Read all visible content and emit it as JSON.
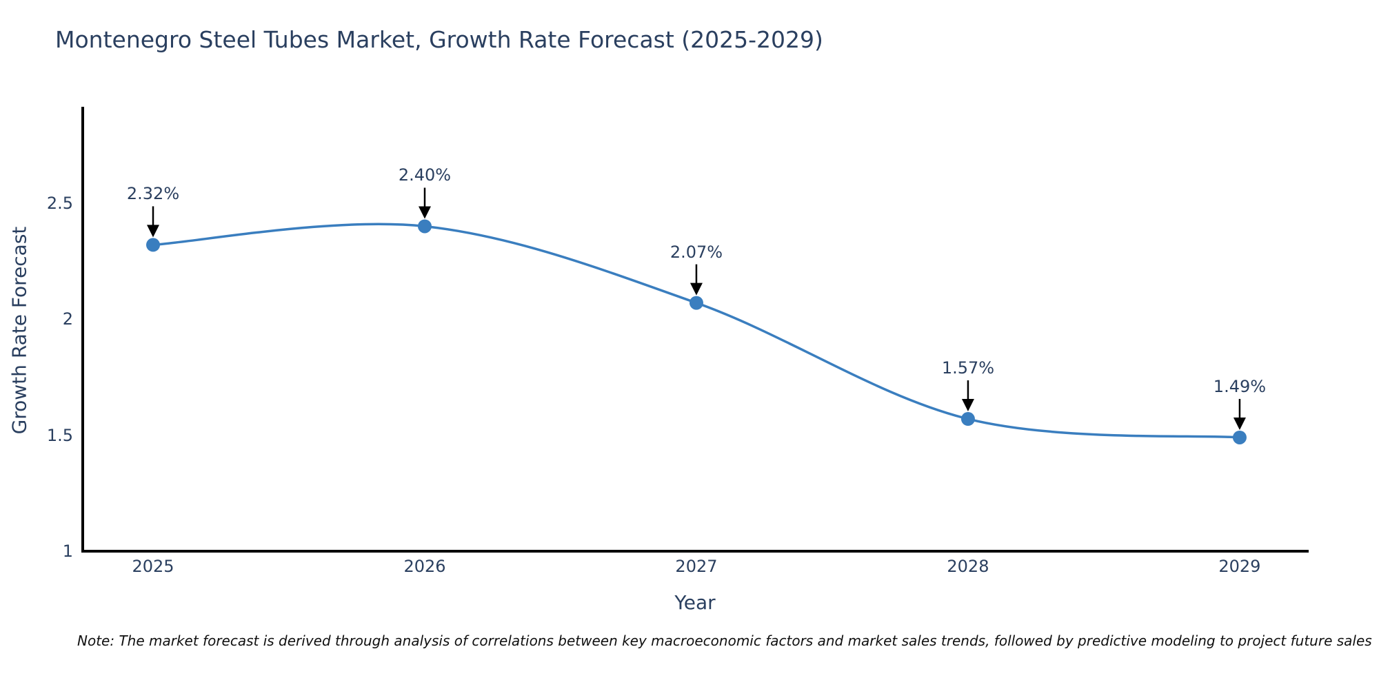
{
  "title": "Montenegro Steel Tubes Market, Growth Rate Forecast (2025-2029)",
  "note": "Note: The market forecast is derived through analysis of correlations between key macroeconomic factors and market sales trends, followed by predictive modeling to project future sales",
  "chart_data": {
    "type": "line",
    "title": "Montenegro Steel Tubes Market, Growth Rate Forecast (2025-2029)",
    "xlabel": "Year",
    "ylabel": "Growth Rate Forecast",
    "x": [
      2025,
      2026,
      2027,
      2028,
      2029
    ],
    "y": [
      2.32,
      2.4,
      2.07,
      1.57,
      1.49
    ],
    "point_labels": [
      "2.32%",
      "2.40%",
      "2.07%",
      "1.57%",
      "1.49%"
    ],
    "x_tick_labels": [
      "2025",
      "2026",
      "2027",
      "2028",
      "2029"
    ],
    "y_tick_values": [
      1,
      1.5,
      2,
      2.5
    ],
    "y_tick_labels": [
      "1",
      "1.5",
      "2",
      "2.5"
    ],
    "xlim": [
      2024.736,
      2029.254
    ],
    "ylim": [
      1,
      2.915
    ],
    "line_shape": "spline",
    "grid": "off",
    "legend": "none",
    "colors": {
      "line": "#3a7ebf",
      "marker": "#3a7ebf",
      "axis": "#000000",
      "text": "#2a3f5f",
      "annotation_arrow": "#000000"
    }
  }
}
